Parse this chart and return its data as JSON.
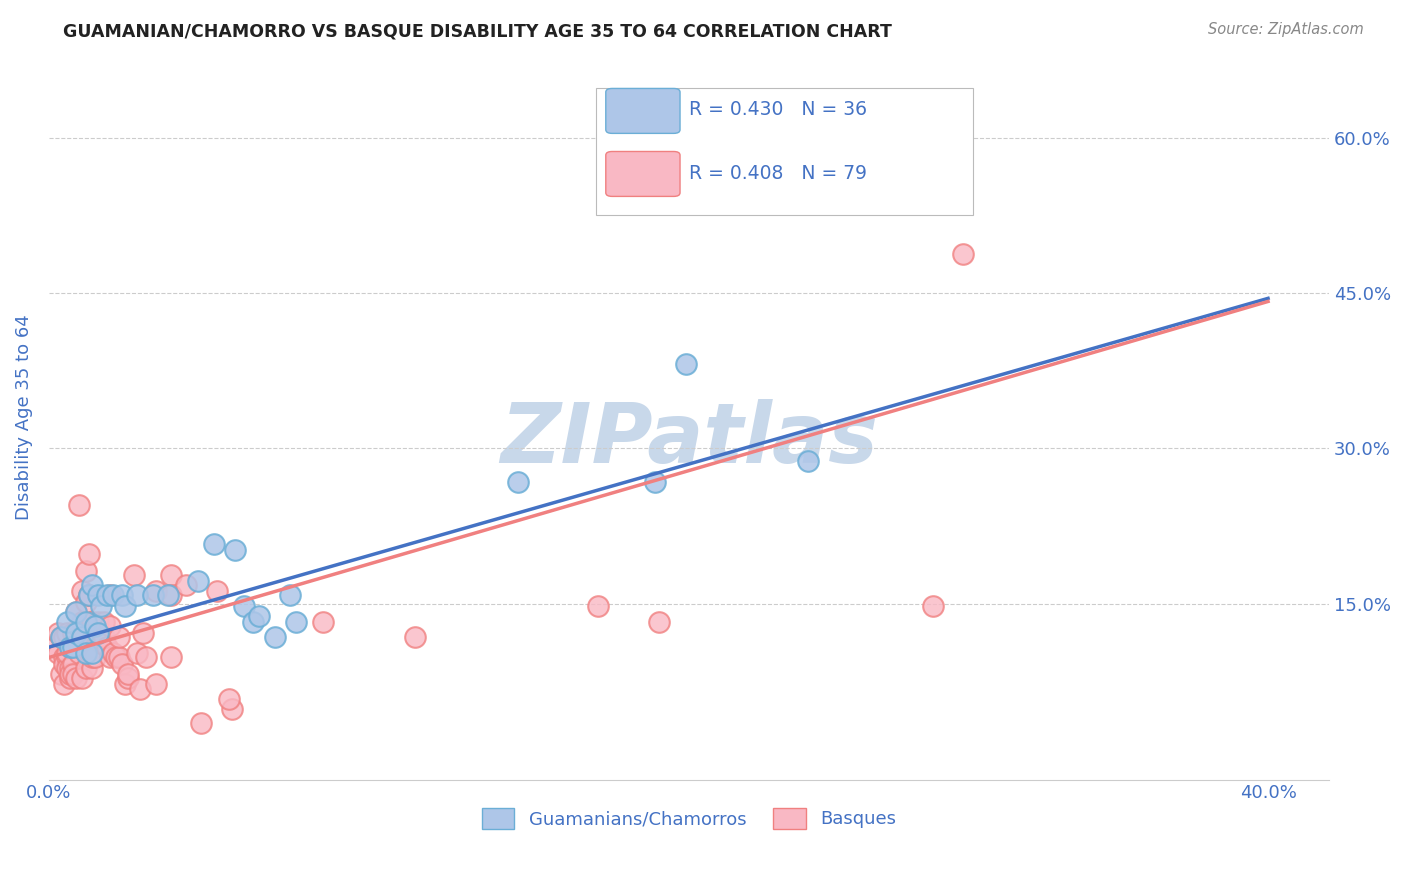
{
  "title": "GUAMANIAN/CHAMORRO VS BASQUE DISABILITY AGE 35 TO 64 CORRELATION CHART",
  "source": "Source: ZipAtlas.com",
  "ylabel": "Disability Age 35 to 64",
  "xlim": [
    0.0,
    0.42
  ],
  "ylim": [
    -0.02,
    0.68
  ],
  "x_ticks": [
    0.0,
    0.1,
    0.2,
    0.3,
    0.4
  ],
  "x_tick_labels": [
    "0.0%",
    "",
    "",
    "",
    "40.0%"
  ],
  "y_ticks": [
    0.15,
    0.3,
    0.45,
    0.6
  ],
  "y_tick_labels_right": [
    "15.0%",
    "30.0%",
    "45.0%",
    "60.0%"
  ],
  "watermark_text": "ZIPatlas",
  "watermark_color": "#c8d8ea",
  "legend_entries": [
    {
      "label": "R = 0.430   N = 36",
      "facecolor": "#aec6e8",
      "edgecolor": "#6baed6"
    },
    {
      "label": "R = 0.408   N = 79",
      "facecolor": "#f9b8c4",
      "edgecolor": "#f08080"
    }
  ],
  "guamanian_scatter": [
    [
      0.004,
      0.118
    ],
    [
      0.006,
      0.132
    ],
    [
      0.007,
      0.108
    ],
    [
      0.008,
      0.108
    ],
    [
      0.009,
      0.142
    ],
    [
      0.009,
      0.122
    ],
    [
      0.011,
      0.118
    ],
    [
      0.012,
      0.102
    ],
    [
      0.012,
      0.132
    ],
    [
      0.013,
      0.158
    ],
    [
      0.014,
      0.168
    ],
    [
      0.014,
      0.102
    ],
    [
      0.015,
      0.128
    ],
    [
      0.016,
      0.158
    ],
    [
      0.016,
      0.122
    ],
    [
      0.017,
      0.148
    ],
    [
      0.019,
      0.158
    ],
    [
      0.021,
      0.158
    ],
    [
      0.024,
      0.158
    ],
    [
      0.025,
      0.148
    ],
    [
      0.029,
      0.158
    ],
    [
      0.034,
      0.158
    ],
    [
      0.039,
      0.158
    ],
    [
      0.049,
      0.172
    ],
    [
      0.054,
      0.208
    ],
    [
      0.061,
      0.202
    ],
    [
      0.064,
      0.148
    ],
    [
      0.067,
      0.132
    ],
    [
      0.069,
      0.138
    ],
    [
      0.074,
      0.118
    ],
    [
      0.079,
      0.158
    ],
    [
      0.081,
      0.132
    ],
    [
      0.154,
      0.268
    ],
    [
      0.199,
      0.268
    ],
    [
      0.209,
      0.382
    ],
    [
      0.249,
      0.288
    ]
  ],
  "basque_scatter": [
    [
      0.002,
      0.108
    ],
    [
      0.003,
      0.102
    ],
    [
      0.003,
      0.122
    ],
    [
      0.004,
      0.118
    ],
    [
      0.004,
      0.082
    ],
    [
      0.005,
      0.118
    ],
    [
      0.005,
      0.072
    ],
    [
      0.005,
      0.098
    ],
    [
      0.005,
      0.092
    ],
    [
      0.006,
      0.098
    ],
    [
      0.006,
      0.088
    ],
    [
      0.006,
      0.102
    ],
    [
      0.006,
      0.122
    ],
    [
      0.007,
      0.108
    ],
    [
      0.007,
      0.088
    ],
    [
      0.007,
      0.078
    ],
    [
      0.007,
      0.082
    ],
    [
      0.008,
      0.092
    ],
    [
      0.008,
      0.082
    ],
    [
      0.008,
      0.122
    ],
    [
      0.009,
      0.142
    ],
    [
      0.009,
      0.078
    ],
    [
      0.01,
      0.102
    ],
    [
      0.01,
      0.108
    ],
    [
      0.01,
      0.112
    ],
    [
      0.01,
      0.245
    ],
    [
      0.011,
      0.078
    ],
    [
      0.011,
      0.132
    ],
    [
      0.011,
      0.162
    ],
    [
      0.012,
      0.182
    ],
    [
      0.012,
      0.152
    ],
    [
      0.012,
      0.088
    ],
    [
      0.013,
      0.158
    ],
    [
      0.013,
      0.158
    ],
    [
      0.013,
      0.198
    ],
    [
      0.014,
      0.088
    ],
    [
      0.014,
      0.132
    ],
    [
      0.014,
      0.098
    ],
    [
      0.015,
      0.128
    ],
    [
      0.015,
      0.108
    ],
    [
      0.015,
      0.098
    ],
    [
      0.016,
      0.118
    ],
    [
      0.016,
      0.132
    ],
    [
      0.017,
      0.112
    ],
    [
      0.018,
      0.132
    ],
    [
      0.018,
      0.118
    ],
    [
      0.019,
      0.108
    ],
    [
      0.02,
      0.158
    ],
    [
      0.02,
      0.128
    ],
    [
      0.02,
      0.098
    ],
    [
      0.021,
      0.102
    ],
    [
      0.022,
      0.098
    ],
    [
      0.023,
      0.098
    ],
    [
      0.023,
      0.118
    ],
    [
      0.024,
      0.092
    ],
    [
      0.025,
      0.072
    ],
    [
      0.026,
      0.078
    ],
    [
      0.026,
      0.082
    ],
    [
      0.028,
      0.178
    ],
    [
      0.029,
      0.102
    ],
    [
      0.03,
      0.068
    ],
    [
      0.031,
      0.122
    ],
    [
      0.032,
      0.098
    ],
    [
      0.035,
      0.162
    ],
    [
      0.035,
      0.072
    ],
    [
      0.04,
      0.178
    ],
    [
      0.04,
      0.098
    ],
    [
      0.04,
      0.158
    ],
    [
      0.045,
      0.168
    ],
    [
      0.05,
      0.035
    ],
    [
      0.055,
      0.162
    ],
    [
      0.06,
      0.048
    ],
    [
      0.09,
      0.132
    ],
    [
      0.12,
      0.118
    ],
    [
      0.18,
      0.148
    ],
    [
      0.2,
      0.132
    ],
    [
      0.29,
      0.148
    ],
    [
      0.3,
      0.488
    ],
    [
      0.059,
      0.058
    ]
  ],
  "guamanian_line": {
    "x0": 0.0,
    "y0": 0.108,
    "x1": 0.4,
    "y1": 0.445
  },
  "basque_line": {
    "x0": 0.0,
    "y0": 0.098,
    "x1": 0.4,
    "y1": 0.442
  },
  "grid_color": "#cccccc",
  "background_color": "#ffffff",
  "title_color": "#222222",
  "axis_label_color": "#4472c4",
  "guamanian_scatter_face": "#aec6e8",
  "guamanian_scatter_edge": "#6baed6",
  "basque_scatter_face": "#f9b8c4",
  "basque_scatter_edge": "#f08080",
  "guamanian_line_color": "#4472c4",
  "basque_line_color": "#f08080",
  "guamanian_legend_label": "Guamanians/Chamorros",
  "basque_legend_label": "Basques"
}
